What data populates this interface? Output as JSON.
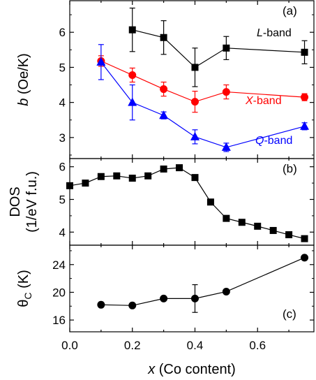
{
  "chart_data": [
    {
      "type": "scatter",
      "panel_label": "(a)",
      "ylabel_var": "b",
      "ylabel_unit": " (Oe/K)",
      "xlim": [
        0,
        0.78
      ],
      "ylim": [
        2.4,
        6.9
      ],
      "yticks": [
        3,
        4,
        5,
        6
      ],
      "series": [
        {
          "name": "L-band",
          "name_italic": "L",
          "name_rest": "-band",
          "color": "#000000",
          "marker": "square",
          "x": [
            0.2,
            0.3,
            0.4,
            0.5,
            0.75
          ],
          "y": [
            6.07,
            5.85,
            5.0,
            5.55,
            5.43
          ],
          "err": [
            0.62,
            0.48,
            0.55,
            0.33,
            0.33
          ]
        },
        {
          "name": "X-band",
          "name_italic": "X",
          "name_rest": "-band",
          "color": "#ff0000",
          "marker": "circle",
          "x": [
            0.1,
            0.2,
            0.3,
            0.4,
            0.5,
            0.75
          ],
          "y": [
            5.18,
            4.78,
            4.38,
            4.02,
            4.3,
            4.15
          ],
          "err": [
            0.15,
            0.2,
            0.2,
            0.3,
            0.2,
            0.1
          ]
        },
        {
          "name": "Q-band",
          "name_italic": "Q",
          "name_rest": "-band",
          "color": "#0000ff",
          "marker": "triangle",
          "x": [
            0.1,
            0.2,
            0.3,
            0.4,
            0.5,
            0.75
          ],
          "y": [
            5.15,
            4.0,
            3.63,
            3.02,
            2.72,
            3.32
          ],
          "err": [
            0.5,
            0.5,
            0.1,
            0.2,
            0.12,
            0.1
          ]
        }
      ]
    },
    {
      "type": "line",
      "panel_label": "(b)",
      "ylabel_line1": "DOS",
      "ylabel_line2": "(1/eV f.u.)",
      "xlim": [
        0,
        0.78
      ],
      "ylim": [
        3.6,
        6.25
      ],
      "yticks": [
        4,
        5,
        6
      ],
      "series": [
        {
          "color": "#000000",
          "marker": "square",
          "x": [
            0.0,
            0.05,
            0.1,
            0.15,
            0.2,
            0.25,
            0.3,
            0.35,
            0.4,
            0.45,
            0.5,
            0.55,
            0.6,
            0.65,
            0.7,
            0.75
          ],
          "y": [
            5.42,
            5.5,
            5.7,
            5.72,
            5.65,
            5.72,
            5.93,
            5.97,
            5.67,
            4.92,
            4.42,
            4.3,
            4.18,
            4.05,
            3.92,
            3.8
          ]
        }
      ]
    },
    {
      "type": "scatter",
      "panel_label": "(c)",
      "ylabel_sym": "θ",
      "ylabel_sub": "C",
      "ylabel_unit": " (K)",
      "xlim": [
        0,
        0.78
      ],
      "ylim": [
        14.3,
        26.8
      ],
      "yticks": [
        16,
        20,
        24
      ],
      "series": [
        {
          "color": "#000000",
          "marker": "circle",
          "x": [
            0.1,
            0.2,
            0.3,
            0.4,
            0.5,
            0.75
          ],
          "y": [
            18.2,
            18.1,
            19.1,
            19.1,
            20.1,
            25.0
          ],
          "err": [
            0,
            0,
            0,
            2.0,
            0,
            0
          ]
        }
      ]
    }
  ],
  "x_axis": {
    "ticks": [
      "0.0",
      "0.2",
      "0.4",
      "0.6"
    ],
    "tick_values": [
      0.0,
      0.2,
      0.4,
      0.6
    ],
    "label_var": "x",
    "label_rest": " (Co content)"
  }
}
